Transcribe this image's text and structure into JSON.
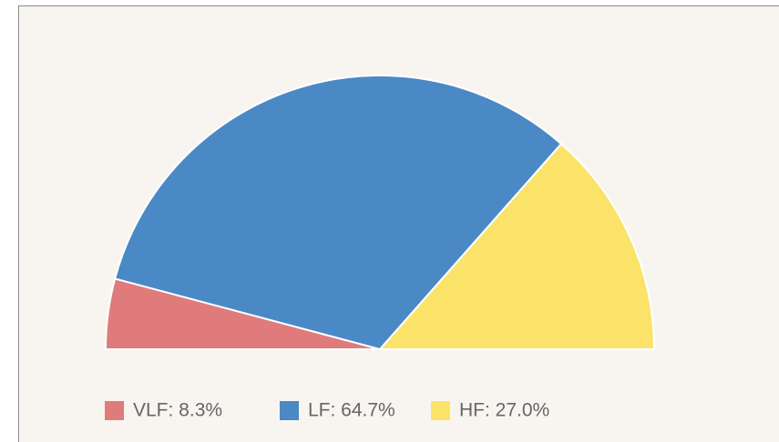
{
  "chart_data": {
    "type": "semi-pie",
    "values": [
      8.3,
      64.7,
      27.0
    ],
    "value_labels": [
      "VLF: 8.3%",
      "LF: 64.7%",
      "HF: 27.0%"
    ],
    "colors": [
      "#e07b7b",
      "#4a89c5",
      "#fbe36a"
    ]
  }
}
